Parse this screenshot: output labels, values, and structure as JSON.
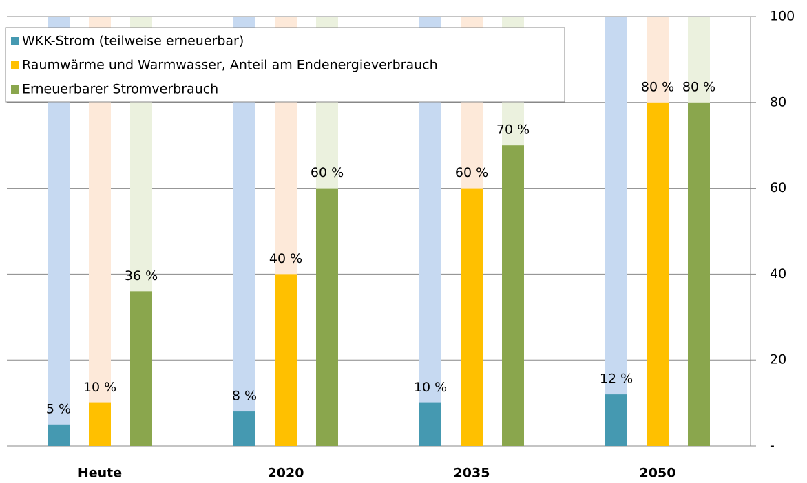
{
  "chart_data": {
    "type": "bar",
    "categories": [
      "Heute",
      "2020",
      "2035",
      "2050"
    ],
    "series": [
      {
        "name": "WKK-Strom (teilweise erneuerbar)",
        "color": "#4599b1",
        "background": "#c6d9f1",
        "values": [
          5,
          8,
          10,
          12
        ],
        "value_labels": [
          "5 %",
          "8 %",
          "10 %",
          "12 %"
        ]
      },
      {
        "name": "Raumwärme und Warmwasser, Anteil am Endenergieverbrauch",
        "color": "#ffc000",
        "background": "#fde9d9",
        "values": [
          10,
          40,
          60,
          80
        ],
        "value_labels": [
          "10 %",
          "40 %",
          "60 %",
          "80 %"
        ]
      },
      {
        "name": "Erneuerbarer Stromverbrauch",
        "color": "#8aa64d",
        "background": "#ebf1de",
        "values": [
          36,
          60,
          70,
          80
        ],
        "value_labels": [
          "36 %",
          "60 %",
          "70 %",
          "80 %"
        ]
      }
    ],
    "ylim": [
      0,
      100
    ],
    "yticks": [
      {
        "value": 0,
        "label": "-"
      },
      20,
      40,
      60,
      80,
      100
    ],
    "grid": true,
    "legend": "top-left"
  }
}
